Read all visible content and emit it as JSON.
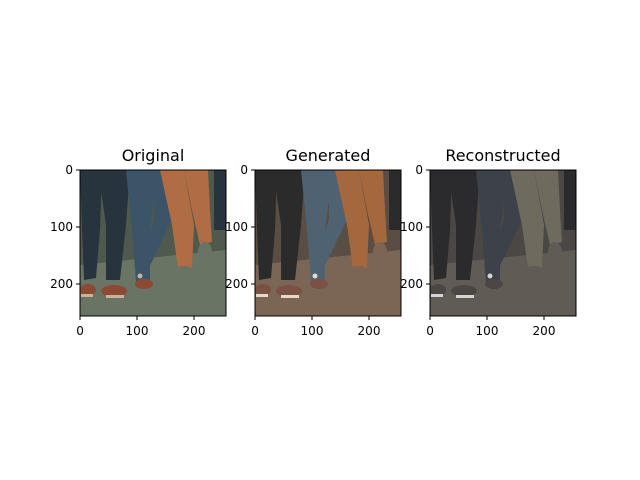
{
  "figure": {
    "panels": [
      {
        "title": "Original",
        "x_ticks": [
          "0",
          "100",
          "200"
        ],
        "y_ticks": [
          "0",
          "100",
          "200"
        ],
        "palette": {
          "bg": "#4f5a4e",
          "ground": "#6a7464",
          "jeans": "#27343e",
          "jeans_light": "#3c5468",
          "orange": "#b06c43",
          "shoe": "#8c4a35",
          "sole": "#c9b29a"
        }
      },
      {
        "title": "Generated",
        "x_ticks": [
          "0",
          "100",
          "200"
        ],
        "y_ticks": [
          "0",
          "100",
          "200"
        ],
        "palette": {
          "bg": "#5a4d44",
          "ground": "#7b6656",
          "jeans": "#2c2b2c",
          "jeans_light": "#4f6272",
          "orange": "#a5683c",
          "shoe": "#7a5143",
          "sole": "#e6d9c6"
        }
      },
      {
        "title": "Reconstructed",
        "x_ticks": [
          "0",
          "100",
          "200"
        ],
        "y_ticks": [
          "0",
          "100",
          "200"
        ],
        "palette": {
          "bg": "#4a4745",
          "ground": "#605b55",
          "jeans": "#2b2b2d",
          "jeans_light": "#3d4149",
          "orange": "#6f6a5e",
          "shoe": "#4c4644",
          "sole": "#d4d4d4"
        }
      }
    ]
  }
}
